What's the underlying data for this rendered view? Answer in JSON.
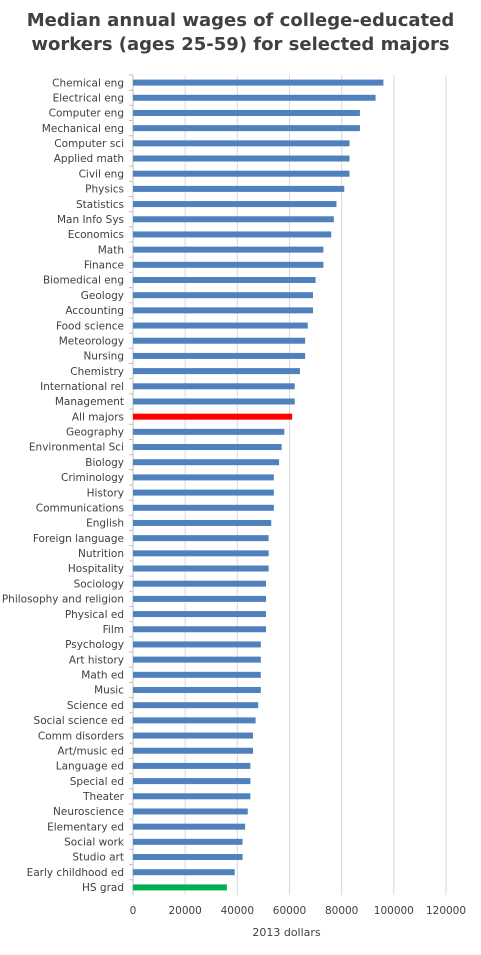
{
  "chart_data": {
    "type": "bar",
    "orientation": "horizontal",
    "title_lines": [
      "Median annual wages of college-educated",
      "workers (ages 25-59) for selected majors"
    ],
    "xlabel": "2013 dollars",
    "ylabel": "",
    "xlim": [
      0,
      120000
    ],
    "xticks": [
      0,
      20000,
      40000,
      60000,
      80000,
      100000,
      120000
    ],
    "grid": true,
    "legend": "none",
    "default_color": "#4f81bd",
    "highlight_colors": {
      "All majors": "#ff0000",
      "HS grad": "#00b050"
    },
    "categories": [
      "Chemical eng",
      "Electrical eng",
      "Computer eng",
      "Mechanical eng",
      "Computer sci",
      "Applied math",
      "Civil eng",
      "Physics",
      "Statistics",
      "Man Info Sys",
      "Economics",
      "Math",
      "Finance",
      "Biomedical eng",
      "Geology",
      "Accounting",
      "Food science",
      "Meteorology",
      "Nursing",
      "Chemistry",
      "International rel",
      "Management",
      "All majors",
      "Geography",
      "Environmental Sci",
      "Biology",
      "Criminology",
      "History",
      "Communications",
      "English",
      "Foreign language",
      "Nutrition",
      "Hospitality",
      "Sociology",
      "Philosophy and religion",
      "Physical ed",
      "Film",
      "Psychology",
      "Art history",
      "Math ed",
      "Music",
      "Science ed",
      "Social science ed",
      "Comm disorders",
      "Art/music ed",
      "Language ed",
      "Special ed",
      "Theater",
      "Neuroscience",
      "Elementary ed",
      "Social work",
      "Studio art",
      "Early childhood ed",
      "HS grad"
    ],
    "values": [
      96000,
      93000,
      87000,
      87000,
      83000,
      83000,
      83000,
      81000,
      78000,
      77000,
      76000,
      73000,
      73000,
      70000,
      69000,
      69000,
      67000,
      66000,
      66000,
      64000,
      62000,
      62000,
      61000,
      58000,
      57000,
      56000,
      54000,
      54000,
      54000,
      53000,
      52000,
      52000,
      52000,
      51000,
      51000,
      51000,
      51000,
      49000,
      49000,
      49000,
      49000,
      48000,
      47000,
      46000,
      46000,
      45000,
      45000,
      45000,
      44000,
      43000,
      42000,
      42000,
      39000,
      36000
    ]
  }
}
